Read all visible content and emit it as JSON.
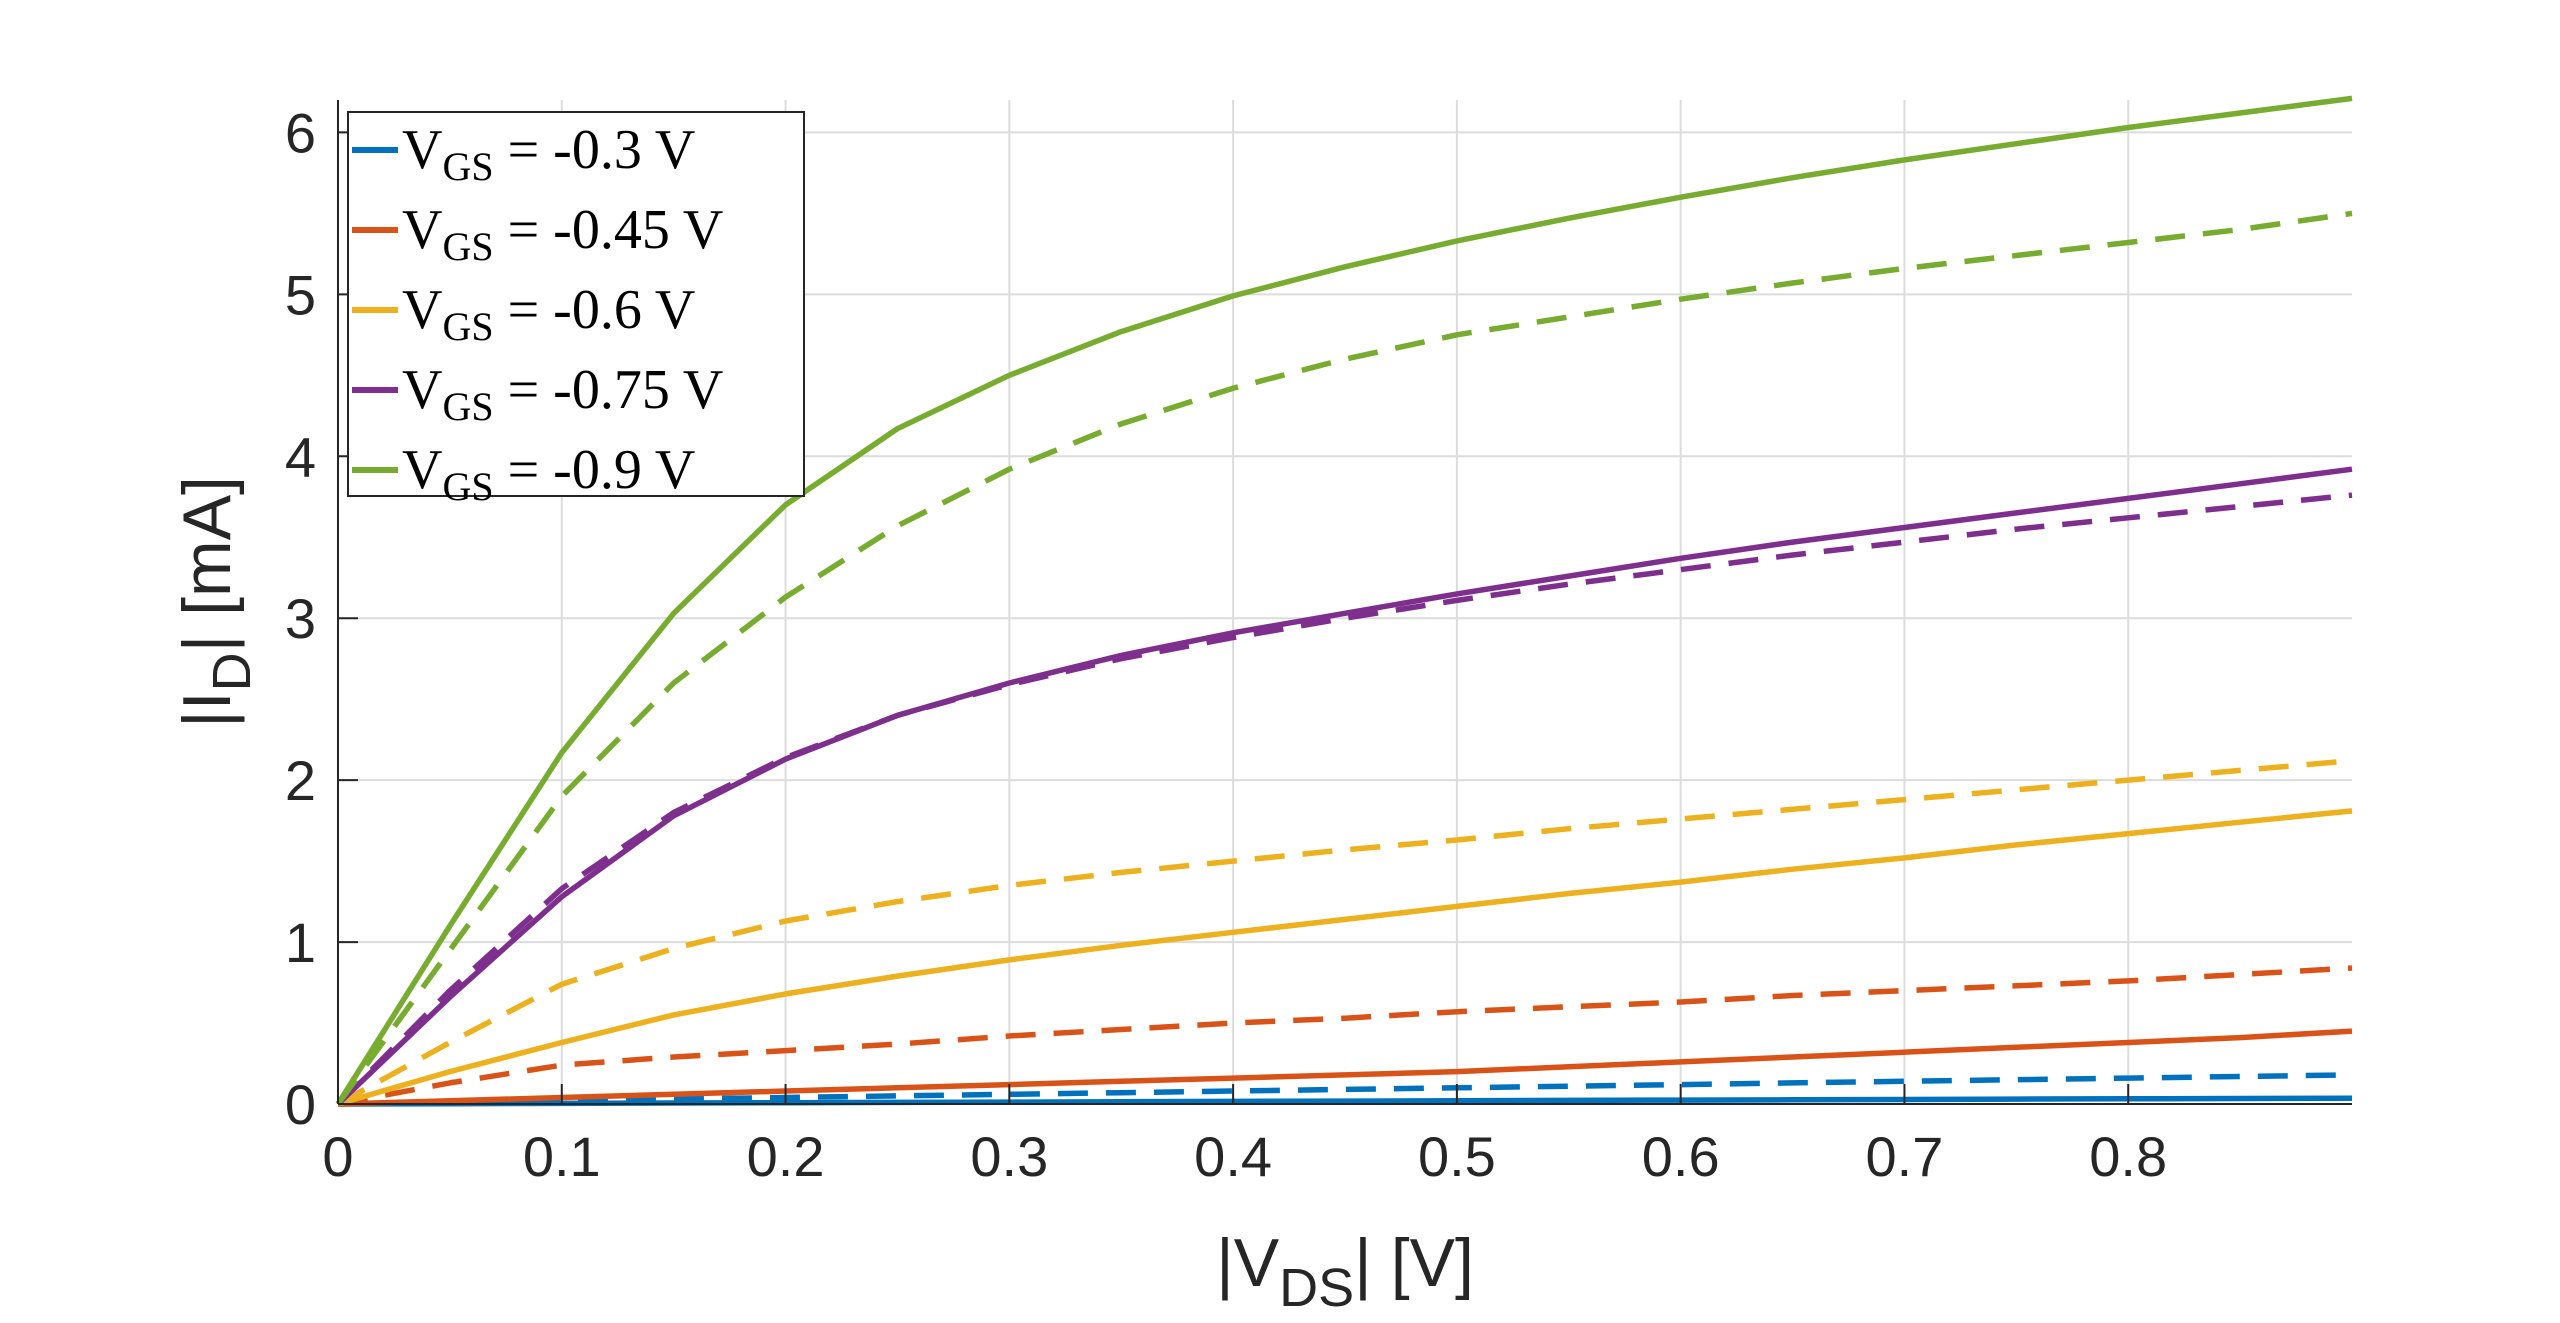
{
  "chart_data": {
    "type": "line",
    "xlabel": {
      "main": "|V",
      "sub": "DS",
      "tail": "| [V]"
    },
    "ylabel": {
      "main": "|I",
      "sub": "D",
      "tail": "| [mA]"
    },
    "xlim": [
      0,
      0.9
    ],
    "ylim": [
      0,
      6.2
    ],
    "xticks": [
      0,
      0.1,
      0.2,
      0.3,
      0.4,
      0.5,
      0.6,
      0.7,
      0.8
    ],
    "xtick_labels": [
      "0",
      "0.1",
      "0.2",
      "0.3",
      "0.4",
      "0.5",
      "0.6",
      "0.7",
      "0.8"
    ],
    "yticks": [
      0,
      1,
      2,
      3,
      4,
      5,
      6
    ],
    "ytick_labels": [
      "0",
      "1",
      "2",
      "3",
      "4",
      "5",
      "6"
    ],
    "grid": true,
    "legend_position": "top-left",
    "x": [
      0,
      0.05,
      0.1,
      0.15,
      0.2,
      0.25,
      0.3,
      0.35,
      0.4,
      0.45,
      0.5,
      0.55,
      0.6,
      0.65,
      0.7,
      0.75,
      0.8,
      0.85,
      0.9
    ],
    "series": [
      {
        "name": "V_GS = -0.3 V",
        "label_main": "V",
        "label_sub": "GS",
        "label_tail": " = -0.3 V",
        "color": "#0072BD",
        "solid": [
          0,
          0.002,
          0.004,
          0.006,
          0.008,
          0.01,
          0.012,
          0.014,
          0.016,
          0.018,
          0.02,
          0.022,
          0.024,
          0.026,
          0.028,
          0.03,
          0.032,
          0.034,
          0.036
        ],
        "dashed": [
          0,
          0.01,
          0.02,
          0.03,
          0.04,
          0.05,
          0.06,
          0.07,
          0.08,
          0.09,
          0.1,
          0.11,
          0.12,
          0.13,
          0.14,
          0.15,
          0.16,
          0.17,
          0.18
        ]
      },
      {
        "name": "V_GS = -0.45 V",
        "label_main": "V",
        "label_sub": "GS",
        "label_tail": " = -0.45 V",
        "color": "#D95319",
        "solid": [
          0,
          0.02,
          0.04,
          0.06,
          0.08,
          0.1,
          0.12,
          0.14,
          0.16,
          0.18,
          0.2,
          0.23,
          0.26,
          0.29,
          0.32,
          0.35,
          0.38,
          0.41,
          0.45
        ],
        "dashed": [
          0,
          0.13,
          0.24,
          0.29,
          0.33,
          0.37,
          0.42,
          0.46,
          0.5,
          0.53,
          0.57,
          0.6,
          0.63,
          0.67,
          0.7,
          0.73,
          0.76,
          0.8,
          0.84
        ]
      },
      {
        "name": "V_GS = -0.6 V",
        "label_main": "V",
        "label_sub": "GS",
        "label_tail": " = -0.6 V",
        "color": "#EDB120",
        "solid": [
          0,
          0.2,
          0.38,
          0.55,
          0.68,
          0.79,
          0.89,
          0.98,
          1.06,
          1.14,
          1.22,
          1.3,
          1.37,
          1.45,
          1.52,
          1.6,
          1.67,
          1.74,
          1.81
        ],
        "dashed": [
          0,
          0.38,
          0.74,
          0.96,
          1.13,
          1.25,
          1.35,
          1.43,
          1.5,
          1.57,
          1.63,
          1.7,
          1.76,
          1.82,
          1.88,
          1.94,
          2.0,
          2.06,
          2.12
        ]
      },
      {
        "name": "V_GS = -0.75 V",
        "label_main": "V",
        "label_sub": "GS",
        "label_tail": " = -0.75 V",
        "color": "#7E2F8E",
        "solid": [
          0,
          0.66,
          1.28,
          1.78,
          2.13,
          2.4,
          2.6,
          2.77,
          2.91,
          3.03,
          3.15,
          3.26,
          3.37,
          3.47,
          3.56,
          3.65,
          3.74,
          3.83,
          3.92
        ],
        "dashed": [
          0,
          0.7,
          1.33,
          1.8,
          2.14,
          2.4,
          2.59,
          2.75,
          2.88,
          3.0,
          3.11,
          3.21,
          3.3,
          3.39,
          3.47,
          3.55,
          3.62,
          3.69,
          3.76
        ]
      },
      {
        "name": "V_GS = -0.9 V",
        "label_main": "V",
        "label_sub": "GS",
        "label_tail": " = -0.9 V",
        "color": "#77AC30",
        "solid": [
          0,
          1.1,
          2.17,
          3.03,
          3.7,
          4.17,
          4.5,
          4.77,
          4.99,
          5.17,
          5.33,
          5.47,
          5.6,
          5.72,
          5.83,
          5.93,
          6.03,
          6.12,
          6.21
        ],
        "dashed": [
          0,
          0.95,
          1.9,
          2.6,
          3.13,
          3.57,
          3.92,
          4.2,
          4.42,
          4.6,
          4.75,
          4.86,
          4.97,
          5.07,
          5.16,
          5.24,
          5.32,
          5.4,
          5.5
        ]
      }
    ]
  }
}
